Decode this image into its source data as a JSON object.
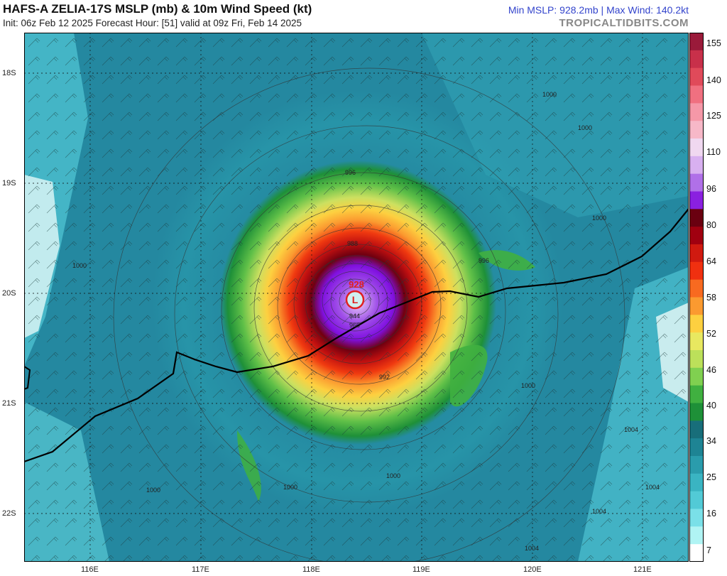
{
  "header": {
    "title": "HAFS-A ZELIA-17S MSLP (mb) & 10m Wind Speed (kt)",
    "subtitle": "Init: 06z Feb 12 2025    Forecast Hour: [51]    valid at 09z Fri, Feb 14 2025",
    "stats": "Min MSLP: 928.2mb  |  Max Wind: 140.2kt",
    "site": "TROPICALTIDBITS.COM"
  },
  "map": {
    "lat_labels": [
      "18S",
      "19S",
      "20S",
      "21S",
      "22S"
    ],
    "lon_labels": [
      "116E",
      "117E",
      "118E",
      "119E",
      "120E",
      "121E"
    ],
    "center_label": "928",
    "center_symbol": "L",
    "isobar_labels": [
      "1000",
      "1000",
      "1000",
      "1000",
      "1000",
      "1000",
      "1000",
      "1000",
      "1004",
      "1004",
      "1004",
      "1004",
      "996",
      "996",
      "988",
      "992",
      "960",
      "944"
    ]
  },
  "colorbar": {
    "labels": [
      "155",
      "140",
      "125",
      "110",
      "96",
      "80",
      "64",
      "58",
      "52",
      "46",
      "40",
      "34",
      "25",
      "16",
      "7"
    ],
    "colors": [
      "#9a1a3a",
      "#c8304a",
      "#e04a5a",
      "#f07080",
      "#f598a8",
      "#f7b8c8",
      "#f0d8f0",
      "#d8b0f0",
      "#b070e8",
      "#8a20e0",
      "#6a0010",
      "#a00010",
      "#d01a10",
      "#f03010",
      "#f86a20",
      "#fb9a30",
      "#fdd040",
      "#e8e860",
      "#bce05a",
      "#80d050",
      "#40b040",
      "#1e9038",
      "#186e7a",
      "#1e8494",
      "#2a9cac",
      "#3ab4c2",
      "#52cad6",
      "#7ae0e8",
      "#b0f4f4",
      "#ffffff"
    ]
  }
}
